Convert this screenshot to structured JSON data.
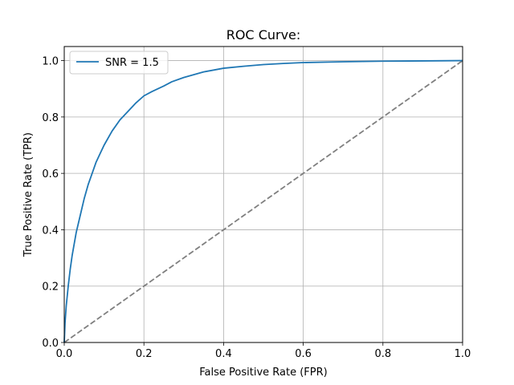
{
  "chart_data": {
    "type": "line",
    "title": "ROC Curve:",
    "xlabel": "False Positive Rate (FPR)",
    "ylabel": "True Positive Rate (TPR)",
    "xlim": [
      0.0,
      1.0
    ],
    "ylim": [
      0.0,
      1.05
    ],
    "xticks": [
      0.0,
      0.2,
      0.4,
      0.6,
      0.8,
      1.0
    ],
    "yticks": [
      0.0,
      0.2,
      0.4,
      0.6,
      0.8,
      1.0
    ],
    "xtick_labels": [
      "0.0",
      "0.2",
      "0.4",
      "0.6",
      "0.8",
      "1.0"
    ],
    "ytick_labels": [
      "0.0",
      "0.2",
      "0.4",
      "0.6",
      "0.8",
      "1.0"
    ],
    "grid": true,
    "legend_position": "top-left",
    "series": [
      {
        "name": "SNR = 1.5",
        "color": "#1f77b4",
        "style": "solid",
        "x": [
          0.0,
          0.002,
          0.005,
          0.01,
          0.015,
          0.02,
          0.03,
          0.04,
          0.05,
          0.06,
          0.07,
          0.08,
          0.09,
          0.1,
          0.12,
          0.14,
          0.16,
          0.18,
          0.2,
          0.22,
          0.25,
          0.27,
          0.3,
          0.35,
          0.4,
          0.45,
          0.5,
          0.55,
          0.6,
          0.7,
          0.8,
          0.9,
          1.0
        ],
        "y": [
          0.0,
          0.07,
          0.13,
          0.2,
          0.26,
          0.31,
          0.39,
          0.45,
          0.51,
          0.56,
          0.6,
          0.64,
          0.67,
          0.7,
          0.75,
          0.79,
          0.82,
          0.85,
          0.875,
          0.89,
          0.91,
          0.925,
          0.94,
          0.96,
          0.973,
          0.98,
          0.986,
          0.99,
          0.993,
          0.996,
          0.998,
          0.999,
          1.0
        ]
      },
      {
        "name": "",
        "color": "#7f7f7f",
        "style": "dashed",
        "x": [
          0.0,
          1.0
        ],
        "y": [
          0.0,
          1.0
        ]
      }
    ]
  }
}
